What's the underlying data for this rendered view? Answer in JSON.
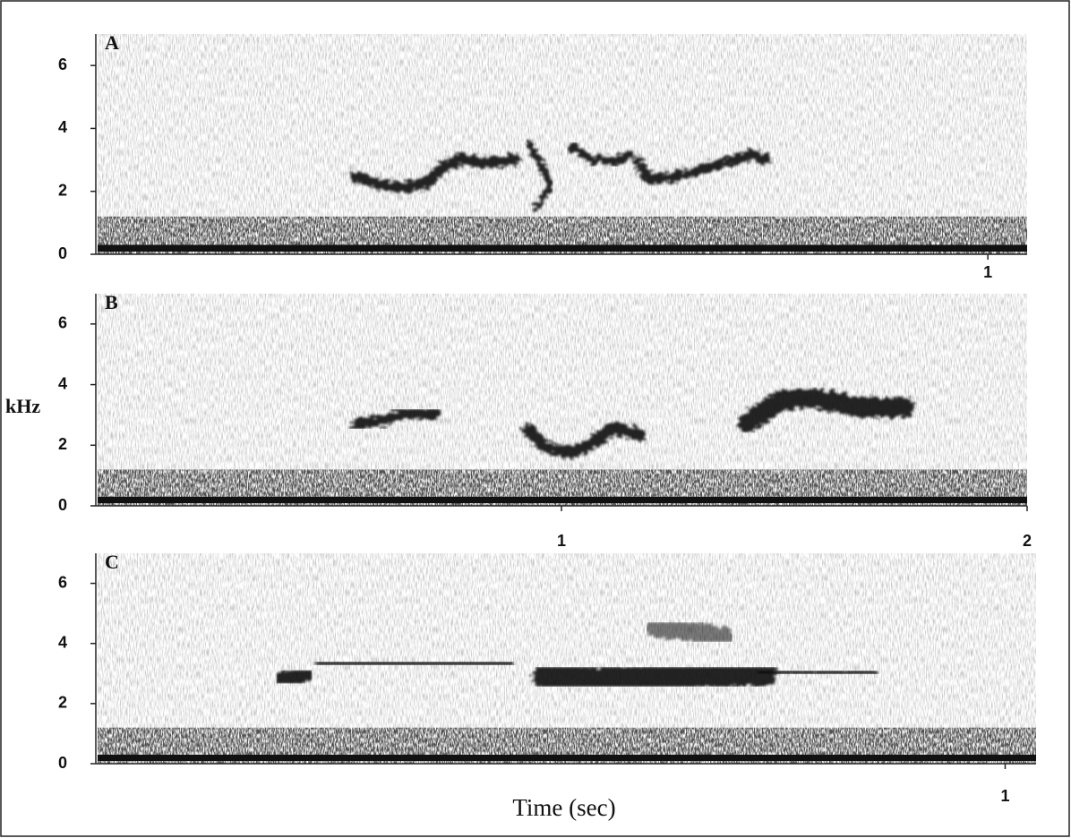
{
  "ylabel": "kHz",
  "xlabel": "Time (sec)",
  "chart_data": [
    {
      "type": "spectrogram",
      "label": "A",
      "ylim": [
        0,
        7
      ],
      "yticks": [
        0,
        2,
        4,
        6
      ],
      "xlim": [
        0,
        1.044
      ],
      "xticks": [
        1
      ]
    },
    {
      "type": "spectrogram",
      "label": "B",
      "ylim": [
        0,
        7
      ],
      "yticks": [
        0,
        2,
        4,
        6
      ],
      "xlim": [
        0,
        2
      ],
      "xticks": [
        1,
        2
      ]
    },
    {
      "type": "spectrogram",
      "label": "C",
      "ylim": [
        0,
        7
      ],
      "yticks": [
        0,
        2,
        4,
        6
      ],
      "xlim": [
        0,
        1.034
      ],
      "xticks": [
        1
      ]
    }
  ]
}
